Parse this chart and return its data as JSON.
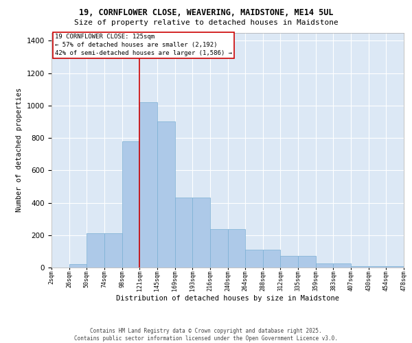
{
  "title_line1": "19, CORNFLOWER CLOSE, WEAVERING, MAIDSTONE, ME14 5UL",
  "title_line2": "Size of property relative to detached houses in Maidstone",
  "xlabel": "Distribution of detached houses by size in Maidstone",
  "ylabel": "Number of detached properties",
  "footer_line1": "Contains HM Land Registry data © Crown copyright and database right 2025.",
  "footer_line2": "Contains public sector information licensed under the Open Government Licence v3.0.",
  "annotation_title": "19 CORNFLOWER CLOSE: 125sqm",
  "annotation_line2": "← 57% of detached houses are smaller (2,192)",
  "annotation_line3": "42% of semi-detached houses are larger (1,586) →",
  "bar_labels": [
    "2sqm",
    "26sqm",
    "50sqm",
    "74sqm",
    "98sqm",
    "121sqm",
    "145sqm",
    "169sqm",
    "193sqm",
    "216sqm",
    "240sqm",
    "264sqm",
    "288sqm",
    "312sqm",
    "335sqm",
    "359sqm",
    "383sqm",
    "407sqm",
    "430sqm",
    "454sqm",
    "478sqm"
  ],
  "bar_values": [
    0,
    20,
    210,
    210,
    780,
    1020,
    900,
    430,
    430,
    235,
    235,
    110,
    110,
    70,
    70,
    25,
    25,
    10,
    10,
    10
  ],
  "bar_color": "#adc9e8",
  "bar_edge_color": "#7aafd4",
  "vline_color": "#cc0000",
  "ylim": [
    0,
    1450
  ],
  "yticks": [
    0,
    200,
    400,
    600,
    800,
    1000,
    1200,
    1400
  ],
  "background_color": "#dce8f5",
  "grid_color": "#ffffff",
  "annotation_box_color": "#ffffff",
  "annotation_box_edge": "#cc0000",
  "title1_fontsize": 8.5,
  "title2_fontsize": 8.0,
  "ylabel_fontsize": 7.5,
  "xlabel_fontsize": 7.5,
  "ytick_fontsize": 7.5,
  "xtick_fontsize": 6.0,
  "ann_fontsize": 6.5,
  "footer_fontsize": 5.5
}
